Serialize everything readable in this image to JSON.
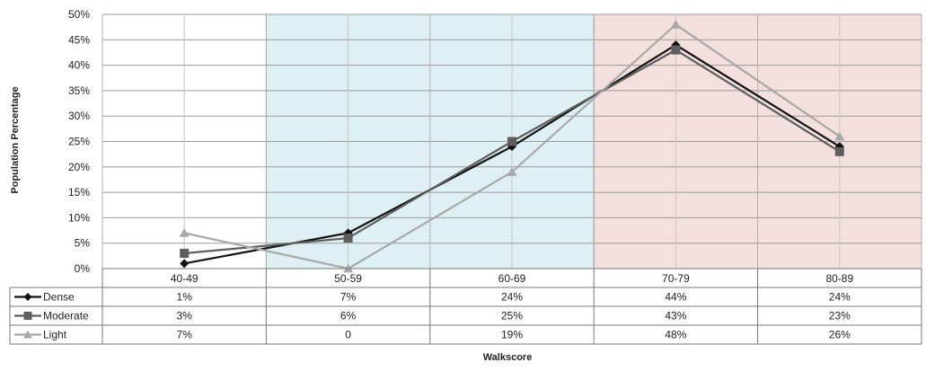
{
  "chart_data": {
    "type": "line",
    "title": "",
    "xlabel": "Walkscore",
    "ylabel": "Population Percentage",
    "categories": [
      "40-49",
      "50-59",
      "60-69",
      "70-79",
      "80-89"
    ],
    "ylim": [
      0,
      50
    ],
    "yticks": [
      "0%",
      "5%",
      "10%",
      "15%",
      "20%",
      "25%",
      "30%",
      "35%",
      "40%",
      "45%",
      "50%"
    ],
    "grid": true,
    "legend": "data-table",
    "shaded_regions": [
      {
        "from_category": "50-59",
        "to_category": "60-69",
        "color": "#dff0f4"
      },
      {
        "from_category": "70-79",
        "to_category": "80-89",
        "color": "#f4dfdf"
      }
    ],
    "series": [
      {
        "name": "Dense",
        "color": "#111111",
        "marker": "diamond",
        "values": [
          1,
          7,
          24,
          44,
          24
        ],
        "labels": [
          "1%",
          "7%",
          "24%",
          "44%",
          "24%"
        ]
      },
      {
        "name": "Moderate",
        "color": "#5e5e5e",
        "marker": "square",
        "values": [
          3,
          6,
          25,
          43,
          23
        ],
        "labels": [
          "3%",
          "6%",
          "25%",
          "43%",
          "23%"
        ]
      },
      {
        "name": "Light",
        "color": "#a8a8a8",
        "marker": "triangle",
        "values": [
          7,
          0,
          19,
          48,
          26
        ],
        "labels": [
          "7%",
          "0",
          "19%",
          "48%",
          "26%"
        ]
      }
    ]
  }
}
